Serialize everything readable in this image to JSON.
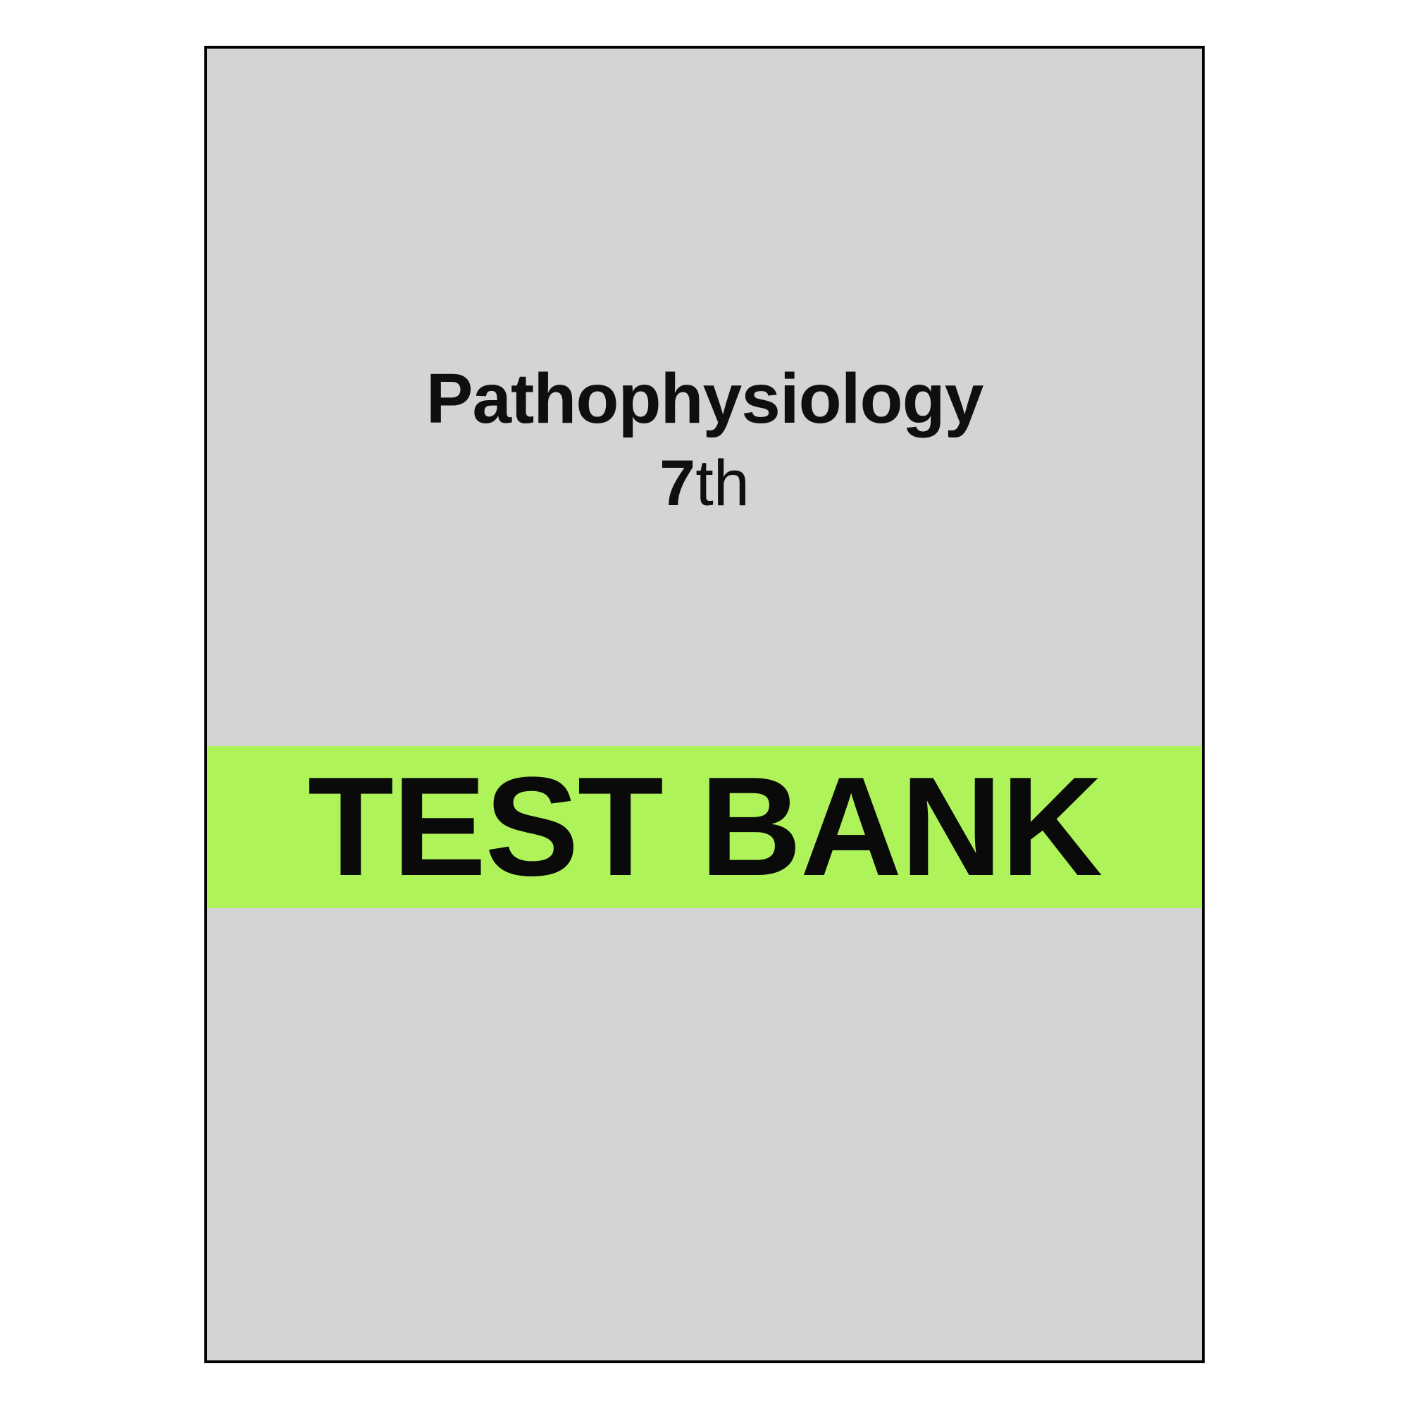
{
  "cover": {
    "title": "Pathophysiology",
    "edition_number": "7",
    "edition_suffix": "th",
    "banner_text": "TEST BANK",
    "background_color": "#d4d4d4",
    "border_color": "#000000",
    "banner_background_color": "#aef359",
    "text_color": "#0f0f0f",
    "banner_text_color": "#0a0a0a",
    "title_fontsize": 100,
    "title_fontweight": 700,
    "edition_fontsize": 92,
    "banner_fontsize": 200,
    "banner_fontweight": 800,
    "container_width": 1420,
    "container_height": 1870,
    "border_width": 4
  }
}
